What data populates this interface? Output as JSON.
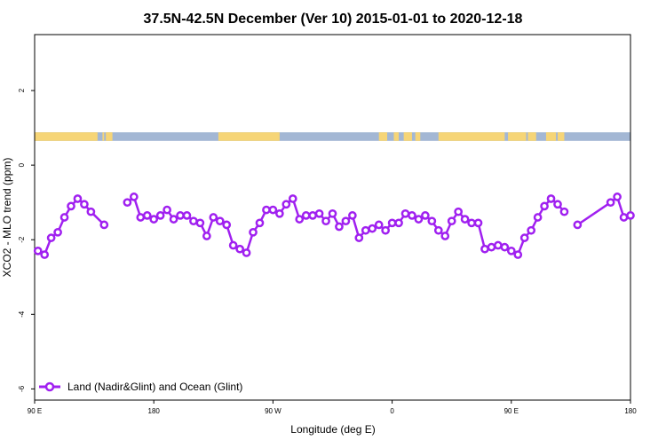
{
  "chart_data": {
    "type": "line",
    "title": "37.5N-42.5N December (Ver 10)   2015-01-01 to 2020-12-18",
    "xlabel": "Longitude (deg E)",
    "ylabel": "XCO2 - MLO trend (ppm)",
    "xlim": [
      90,
      450
    ],
    "ylim": [
      -6.3,
      3.5
    ],
    "x_ticks": [
      {
        "value": 90,
        "label": "90 E"
      },
      {
        "value": 162,
        "label": "180"
      },
      {
        "value": 234,
        "label": "90 W"
      },
      {
        "value": 306,
        "label": "0"
      },
      {
        "value": 378,
        "label": "90 E"
      },
      {
        "value": 450,
        "label": "180"
      }
    ],
    "y_ticks": [
      {
        "value": 2,
        "label": "2"
      },
      {
        "value": 0,
        "label": "0"
      },
      {
        "value": -2,
        "label": "-2"
      },
      {
        "value": -4,
        "label": "-4"
      },
      {
        "value": -6,
        "label": "-6"
      }
    ],
    "land_ocean_band": {
      "y_range": [
        0.65,
        0.88
      ],
      "ocean_color": "#a3b7d4",
      "land_color": "#f6d577",
      "land_segments": [
        [
          90,
          128
        ],
        [
          131,
          132
        ],
        [
          137,
          133
        ],
        [
          201,
          238
        ],
        [
          298,
          303
        ],
        [
          307,
          310
        ],
        [
          313,
          318
        ],
        [
          320,
          323
        ],
        [
          334,
          374
        ],
        [
          376,
          387
        ],
        [
          388,
          393
        ],
        [
          399,
          405
        ],
        [
          406,
          410
        ]
      ]
    },
    "series": [
      {
        "name": "Land (Nadir&Glint) and Ocean (Glint)",
        "color": "#a020f0",
        "x": [
          92,
          96,
          100,
          104,
          108,
          112,
          116,
          120,
          124,
          132,
          146,
          150,
          154,
          158,
          162,
          166,
          170,
          174,
          178,
          182,
          186,
          190,
          194,
          198,
          202,
          206,
          210,
          214,
          218,
          222,
          226,
          230,
          234,
          238,
          242,
          246,
          250,
          254,
          258,
          262,
          266,
          270,
          274,
          278,
          282,
          286,
          290,
          294,
          298,
          302,
          306,
          310,
          314,
          318,
          322,
          326,
          330,
          334,
          338,
          342,
          346,
          350,
          354,
          358,
          362,
          366,
          370,
          374,
          378,
          382,
          386,
          390,
          394,
          398,
          402,
          406,
          410,
          418,
          438,
          442,
          446,
          450
        ],
        "y": [
          -2.3,
          -2.4,
          -1.95,
          -1.8,
          -1.4,
          -1.1,
          -0.9,
          -1.05,
          -1.25,
          -1.6,
          -1.0,
          -0.85,
          -1.4,
          -1.35,
          -1.45,
          -1.35,
          -1.2,
          -1.45,
          -1.35,
          -1.35,
          -1.5,
          -1.55,
          -1.9,
          -1.4,
          -1.5,
          -1.6,
          -2.15,
          -2.25,
          -2.35,
          -1.8,
          -1.55,
          -1.2,
          -1.2,
          -1.3,
          -1.05,
          -0.9,
          -1.45,
          -1.35,
          -1.35,
          -1.3,
          -1.5,
          -1.3,
          -1.65,
          -1.5,
          -1.35,
          -1.95,
          -1.75,
          -1.7,
          -1.6,
          -1.75,
          -1.55,
          -1.55,
          -1.3,
          -1.35,
          -1.45,
          -1.35,
          -1.5,
          -1.75,
          -1.9,
          -1.5,
          -1.25,
          -1.45,
          -1.55,
          -1.55,
          -2.25,
          -2.2,
          -2.15,
          -2.2,
          -2.3,
          -2.4,
          -1.95,
          -1.75,
          -1.4,
          -1.1,
          -0.9,
          -1.05,
          -1.25,
          -1.6,
          -1.0,
          -0.85,
          -1.4,
          -1.35
        ],
        "breaks_after_index": [
          9,
          76
        ]
      }
    ],
    "legend": {
      "position": "bottom-left",
      "entries": [
        "Land (Nadir&Glint) and Ocean (Glint)"
      ]
    },
    "grid": false
  }
}
